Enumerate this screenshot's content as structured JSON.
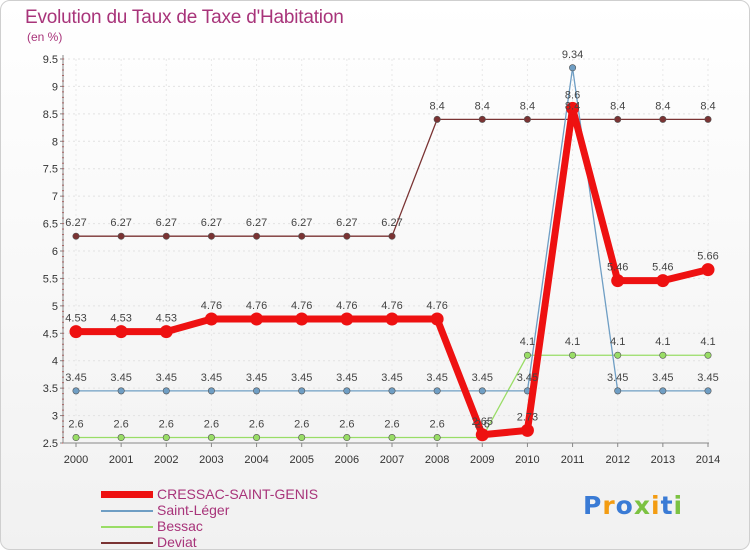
{
  "header": {
    "title": "Evolution du Taux de Taxe d'Habitation",
    "subtitle": "(en %)"
  },
  "chart_data": {
    "type": "line",
    "title": "Evolution du Taux de Taxe d'Habitation",
    "ylabel": "(en %)",
    "xlabel": "",
    "ylim": [
      2.5,
      9.5
    ],
    "yticks": [
      "2.5",
      "3",
      "3.5",
      "4",
      "4.5",
      "5",
      "5.5",
      "6",
      "6.5",
      "7",
      "7.5",
      "8",
      "8.5",
      "9",
      "9.5"
    ],
    "categories": [
      "2000",
      "2001",
      "2002",
      "2003",
      "2004",
      "2005",
      "2006",
      "2007",
      "2008",
      "2009",
      "2010",
      "2011",
      "2012",
      "2013",
      "2014"
    ],
    "series": [
      {
        "name": "CRESSAC-SAINT-GENIS",
        "color": "#ee1111",
        "values": [
          4.53,
          4.53,
          4.53,
          4.76,
          4.76,
          4.76,
          4.76,
          4.76,
          4.76,
          2.65,
          2.73,
          8.6,
          5.46,
          5.46,
          5.66
        ],
        "labels": [
          "4.53",
          "4.53",
          "4.53",
          "4.76",
          "4.76",
          "4.76",
          "4.76",
          "4.76",
          "4.76",
          "2.65",
          "2.73",
          "8.6",
          "5.46",
          "5.46",
          "5.66"
        ]
      },
      {
        "name": "Saint-Léger",
        "color": "#6f9ec4",
        "values": [
          3.45,
          3.45,
          3.45,
          3.45,
          3.45,
          3.45,
          3.45,
          3.45,
          3.45,
          3.45,
          3.45,
          9.34,
          3.45,
          3.45,
          3.45
        ],
        "labels": [
          "3.45",
          "3.45",
          "3.45",
          "3.45",
          "3.45",
          "3.45",
          "3.45",
          "3.45",
          "3.45",
          "3.45",
          "3.45",
          "9.34",
          "3.45",
          "3.45",
          "3.45"
        ]
      },
      {
        "name": "Bessac",
        "color": "#99dd66",
        "values": [
          2.6,
          2.6,
          2.6,
          2.6,
          2.6,
          2.6,
          2.6,
          2.6,
          2.6,
          2.6,
          4.1,
          4.1,
          4.1,
          4.1,
          4.1
        ],
        "labels": [
          "2.6",
          "2.6",
          "2.6",
          "2.6",
          "2.6",
          "2.6",
          "2.6",
          "2.6",
          "2.6",
          "2.6",
          "4.1",
          "4.1",
          "4.1",
          "4.1",
          "4.1"
        ]
      },
      {
        "name": "Deviat",
        "color": "#7a3333",
        "values": [
          6.27,
          6.27,
          6.27,
          6.27,
          6.27,
          6.27,
          6.27,
          6.27,
          8.4,
          8.4,
          8.4,
          8.4,
          8.4,
          8.4,
          8.4
        ],
        "labels": [
          "6.27",
          "6.27",
          "6.27",
          "6.27",
          "6.27",
          "6.27",
          "6.27",
          "6.27",
          "8.4",
          "8.4",
          "8.4",
          "8.4",
          "8.4",
          "8.4",
          "8.4"
        ]
      }
    ]
  },
  "logo": {
    "letters": [
      "P",
      "r",
      "o",
      "x",
      "i",
      "t",
      "i"
    ],
    "colors": [
      "#3a7bd5",
      "#f39c12",
      "#3a7bd5",
      "#7cc242",
      "#f39c12",
      "#3a7bd5",
      "#7cc242"
    ]
  }
}
